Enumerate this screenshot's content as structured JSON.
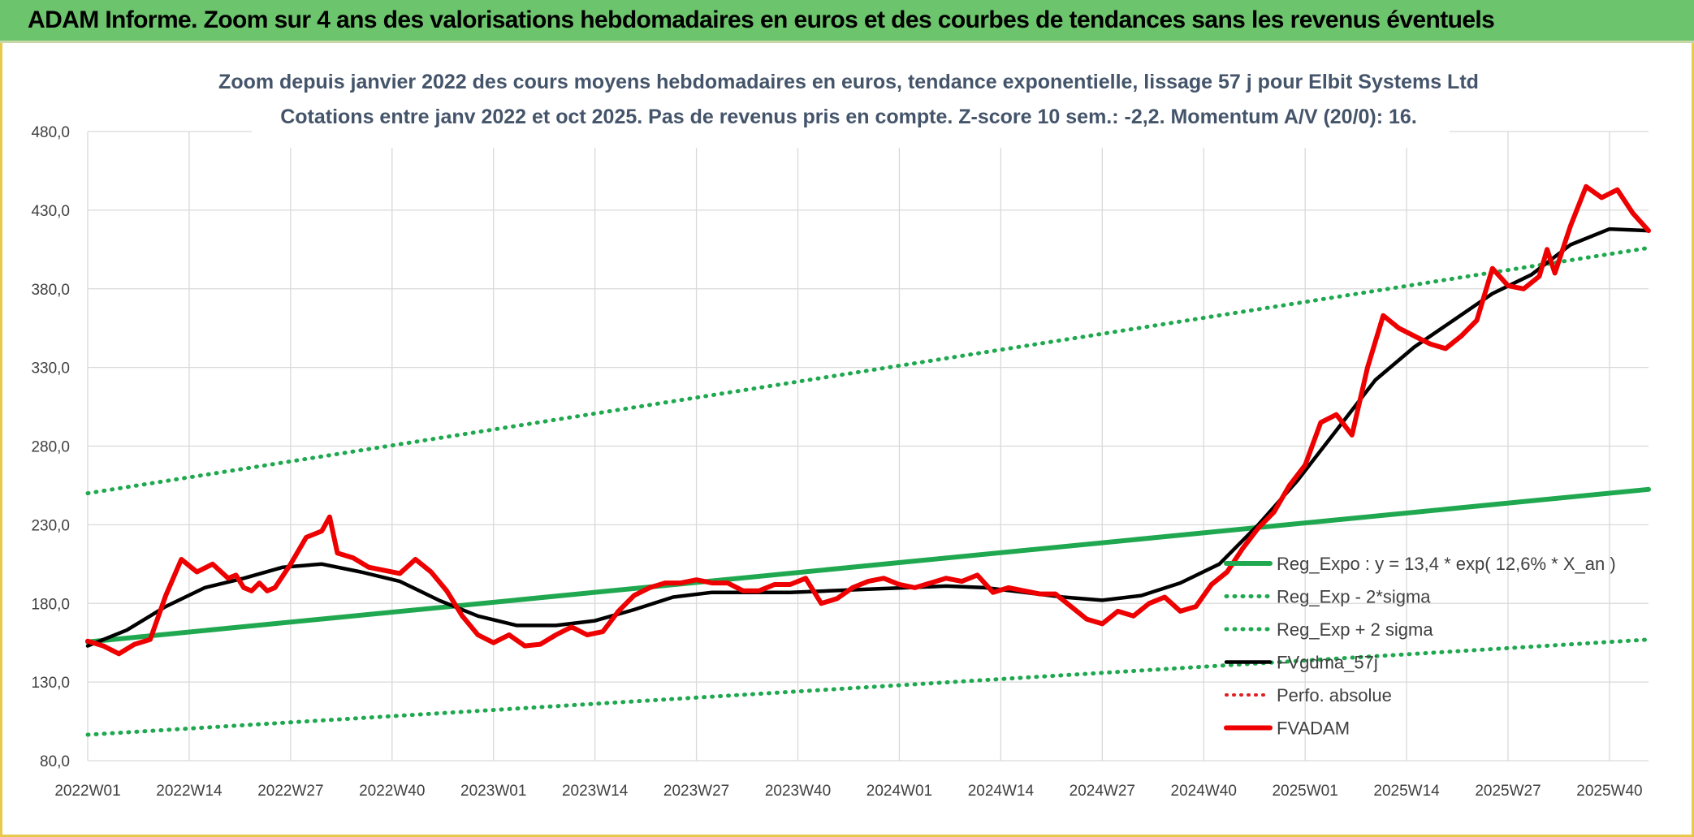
{
  "banner": {
    "title": "ADAM Informe. Zoom sur 4 ans des valorisations hebdomadaires en euros et des courbes de tendances sans les revenus éventuels"
  },
  "colors": {
    "banner_bg": "#6cc46c",
    "frame": "#e8c94a",
    "reg_expo": "#1fa84f",
    "fvgdma": "#000000",
    "perfo": "#e02020",
    "fvadam": "#ee0000",
    "title_text": "#44546a"
  },
  "chart_data": {
    "type": "line",
    "title": "Zoom depuis janvier 2022 des cours moyens hebdomadaires en euros, tendance exponentielle, lissage 57 j pour Elbit Systems Ltd",
    "subtitle": "Cotations entre janv 2022 et oct 2025. Pas de revenus pris en compte. Z-score 10 sem.: -2,2. Momentum A/V (20/0): 16.",
    "xlabel": "",
    "ylabel": "",
    "ylim": [
      80,
      480
    ],
    "yticks": [
      "80,0",
      "130,0",
      "180,0",
      "230,0",
      "280,0",
      "330,0",
      "380,0",
      "430,0",
      "480,0"
    ],
    "xticks": [
      "2022W01",
      "2022W14",
      "2022W27",
      "2022W40",
      "2023W01",
      "2023W14",
      "2023W27",
      "2023W40",
      "2024W01",
      "2024W14",
      "2024W27",
      "2024W40",
      "2025W01",
      "2025W14",
      "2025W27",
      "2025W40"
    ],
    "x_week_index_of_ticks": [
      0,
      13,
      26,
      39,
      52,
      65,
      78,
      91,
      104,
      117,
      130,
      143,
      156,
      169,
      182,
      195
    ],
    "grid": true,
    "legend_position": "bottom-right",
    "series": [
      {
        "name": "Reg_Expo : y = 13,4 * exp( 12,6% *  X_an )",
        "style": "solid",
        "x": [
          0,
          200
        ],
        "values": [
          155.5,
          252.5
        ]
      },
      {
        "name": "Reg_Exp - 2*sigma",
        "style": "dotted",
        "x": [
          0,
          200
        ],
        "values": [
          96.5,
          157
        ]
      },
      {
        "name": "Reg_Exp + 2 sigma",
        "style": "dotted",
        "x": [
          0,
          200
        ],
        "values": [
          250,
          406
        ]
      },
      {
        "name": "FVgdma_57j",
        "style": "solid",
        "x": [
          0,
          5,
          10,
          15,
          20,
          25,
          30,
          35,
          40,
          45,
          50,
          55,
          60,
          65,
          70,
          75,
          80,
          85,
          90,
          95,
          100,
          105,
          110,
          115,
          120,
          125,
          130,
          135,
          140,
          145,
          150,
          155,
          160,
          165,
          170,
          175,
          180,
          185,
          190,
          195,
          200
        ],
        "values": [
          153,
          163,
          178,
          190,
          196,
          203,
          205,
          200,
          194,
          182,
          172,
          166,
          166,
          169,
          176,
          184,
          187,
          187,
          187,
          188,
          189,
          190,
          191,
          190,
          187,
          184,
          182,
          185,
          193,
          205,
          230,
          258,
          290,
          322,
          343,
          360,
          377,
          389,
          408,
          418,
          417
        ]
      },
      {
        "name": "Perfo. absolue",
        "style": "dotted",
        "x": [],
        "values": []
      },
      {
        "name": "FVADAM",
        "style": "solid",
        "x": [
          0,
          2,
          4,
          6,
          8,
          10,
          12,
          14,
          16,
          18,
          19,
          20,
          21,
          22,
          23,
          24,
          26,
          28,
          30,
          31,
          32,
          34,
          36,
          38,
          40,
          42,
          44,
          46,
          48,
          50,
          52,
          54,
          56,
          58,
          60,
          62,
          64,
          66,
          68,
          70,
          72,
          74,
          76,
          78,
          80,
          82,
          84,
          86,
          88,
          90,
          92,
          94,
          96,
          98,
          100,
          102,
          104,
          106,
          108,
          110,
          112,
          114,
          116,
          118,
          120,
          122,
          124,
          126,
          128,
          130,
          132,
          134,
          136,
          138,
          140,
          142,
          144,
          146,
          148,
          150,
          152,
          154,
          156,
          158,
          160,
          162,
          164,
          166,
          168,
          170,
          172,
          174,
          176,
          178,
          180,
          182,
          184,
          186,
          187,
          188,
          190,
          192,
          194,
          196,
          198,
          200
        ],
        "values": [
          156,
          153,
          148,
          154,
          157,
          185,
          208,
          200,
          205,
          196,
          198,
          190,
          188,
          193,
          188,
          190,
          205,
          222,
          226,
          235,
          212,
          209,
          203,
          201,
          199,
          208,
          200,
          188,
          172,
          160,
          155,
          160,
          153,
          154,
          160,
          165,
          160,
          162,
          175,
          185,
          190,
          193,
          193,
          195,
          193,
          193,
          188,
          188,
          192,
          192,
          196,
          180,
          183,
          190,
          194,
          196,
          192,
          190,
          193,
          196,
          194,
          198,
          187,
          190,
          188,
          186,
          186,
          178,
          170,
          167,
          175,
          172,
          180,
          184,
          175,
          178,
          192,
          200,
          215,
          228,
          238,
          255,
          268,
          295,
          300,
          287,
          330,
          363,
          355,
          350,
          345,
          342,
          350,
          360,
          393,
          382,
          380,
          388,
          405,
          390,
          420,
          445,
          438,
          443,
          428,
          417
        ]
      }
    ]
  }
}
